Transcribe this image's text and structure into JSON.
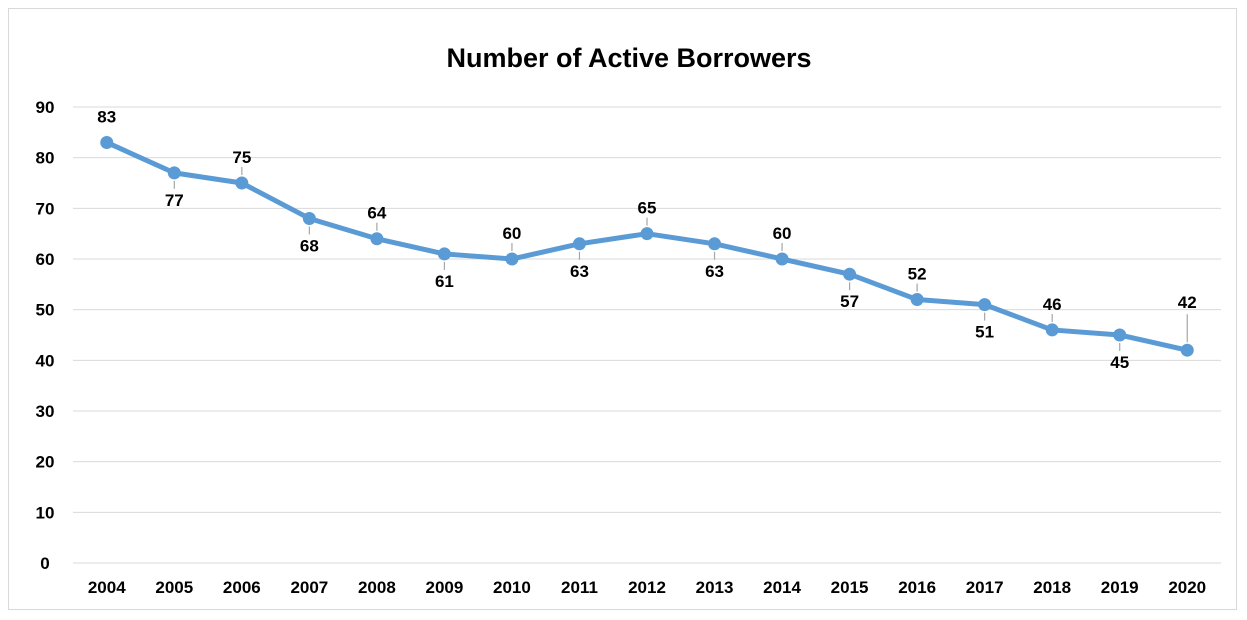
{
  "chart_data": {
    "type": "line",
    "title": "Number of Active Borrowers",
    "xlabel": "",
    "ylabel": "",
    "categories": [
      "2004",
      "2005",
      "2006",
      "2007",
      "2008",
      "2009",
      "2010",
      "2011",
      "2012",
      "2013",
      "2014",
      "2015",
      "2016",
      "2017",
      "2018",
      "2019",
      "2020"
    ],
    "series": [
      {
        "values": [
          83,
          77,
          75,
          68,
          64,
          61,
          60,
          63,
          65,
          63,
          60,
          57,
          52,
          51,
          46,
          45,
          42
        ]
      }
    ],
    "data_label_placement": [
      "above",
      "below",
      "above",
      "below",
      "above",
      "below",
      "above",
      "below",
      "above",
      "below",
      "above",
      "below",
      "above",
      "below",
      "above",
      "below",
      "above"
    ],
    "ylim": [
      0,
      90
    ],
    "yticks": [
      0,
      10,
      20,
      30,
      40,
      50,
      60,
      70,
      80,
      90
    ],
    "grid": true,
    "legend": "none",
    "colors": {
      "line": "#5b9bd5",
      "grid": "#d9d9d9",
      "leader": "#a6a6a6",
      "text": "#000000"
    }
  }
}
